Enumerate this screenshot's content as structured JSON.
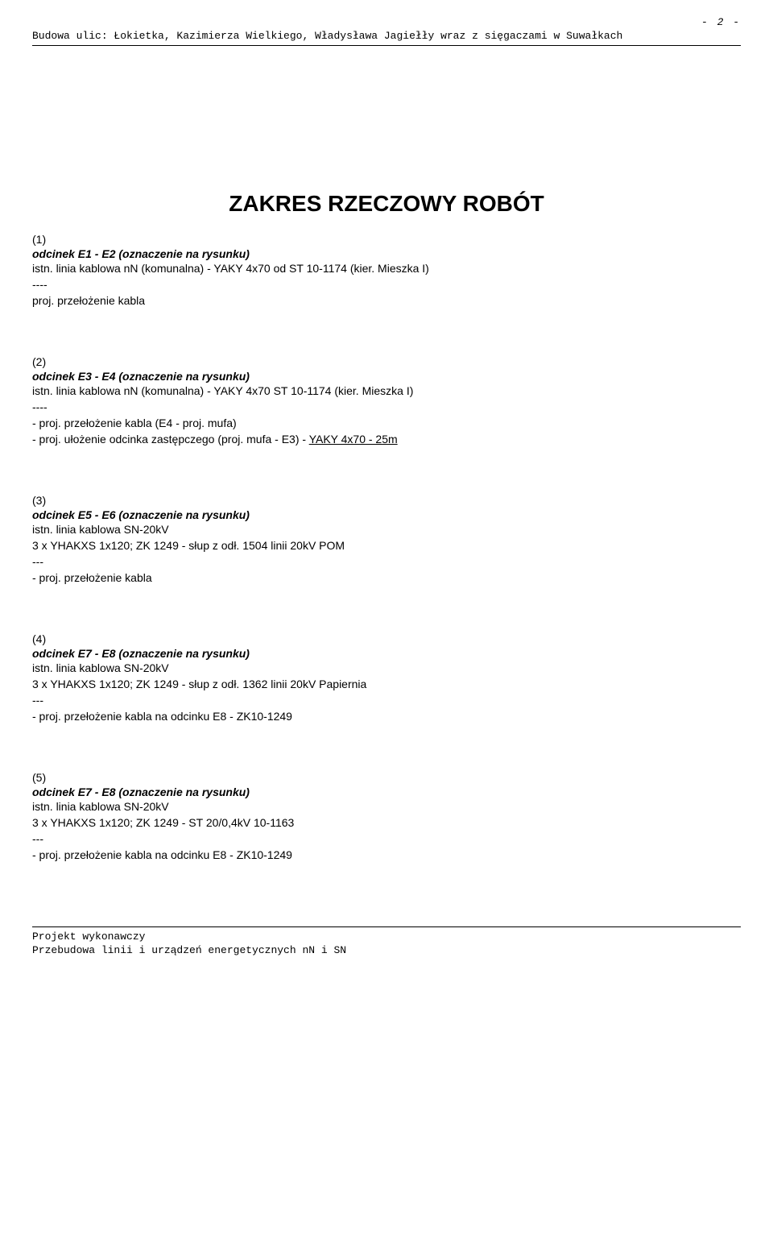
{
  "header": {
    "title": "Budowa ulic: Łokietka, Kazimierza Wielkiego, Władysława Jagiełły wraz z sięgaczami w Suwałkach",
    "pageNumber": "- 2 -"
  },
  "mainTitle": "ZAKRES RZECZOWY ROBÓT",
  "sections": [
    {
      "num": "(1)",
      "heading": "odcinek E1 - E2 (oznaczenie na rysunku)",
      "line1": "istn. linia kablowa nN (komunalna)  - YAKY 4x70  od ST 10-1174 (kier. Mieszka I)",
      "sep": "----",
      "line2": "proj. przełożenie kabla"
    },
    {
      "num": "(2)",
      "heading": "odcinek E3 - E4 (oznaczenie na rysunku)",
      "line1": "istn. linia kablowa nN (komunalna)  - YAKY 4x70  ST 10-1174 (kier. Mieszka I)",
      "sep": "----",
      "line2": "- proj. przełożenie kabla (E4 - proj. mufa)",
      "line3a": "- proj. ułożenie odcinka zastępczego (proj. mufa - E3) - ",
      "line3b": "YAKY 4x70 - 25m"
    },
    {
      "num": "(3)",
      "heading": "odcinek E5 - E6 (oznaczenie na rysunku)",
      "line1": "istn. linia kablowa SN-20kV",
      "line2": "3 x YHAKXS 1x120;  ZK 1249 - słup z odł. 1504 linii 20kV POM",
      "sep": "---",
      "line3": "- proj. przełożenie kabla"
    },
    {
      "num": "(4)",
      "heading": "odcinek E7 - E8 (oznaczenie na rysunku)",
      "line1": "istn. linia kablowa SN-20kV",
      "line2": "3 x YHAKXS 1x120; ZK 1249 - słup z odł. 1362 linii 20kV Papiernia",
      "sep": "---",
      "line3": "- proj. przełożenie kabla na odcinku E8 - ZK10-1249"
    },
    {
      "num": "(5)",
      "heading": "odcinek E7 - E8 (oznaczenie na rysunku)",
      "line1": "istn. linia kablowa SN-20kV",
      "line2": "3 x YHAKXS 1x120;  ZK 1249 - ST 20/0,4kV 10-1163",
      "sep": "---",
      "line3": "- proj. przełożenie kabla na odcinku E8 - ZK10-1249"
    }
  ],
  "footer": {
    "line1": "Projekt wykonawczy",
    "line2": "Przebudowa linii i urządzeń energetycznych nN i SN"
  }
}
